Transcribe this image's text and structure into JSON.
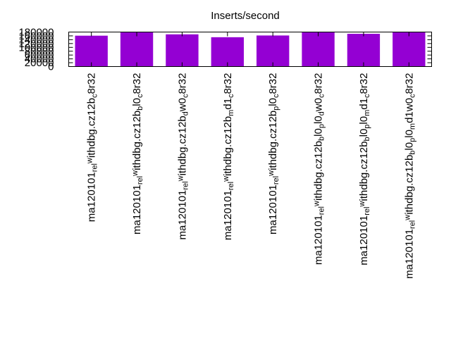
{
  "chart_data": {
    "type": "bar",
    "title": "Inserts/second",
    "xlabel": "",
    "ylabel": "",
    "ylim": [
      0,
      180000
    ],
    "yticks": [
      0,
      20000,
      40000,
      60000,
      80000,
      100000,
      120000,
      140000,
      160000,
      180000
    ],
    "ytick_labels": [
      "0",
      "20000",
      "40000",
      "60000",
      "80000",
      "100000",
      "120000",
      "140000",
      "160000",
      "180000"
    ],
    "grid": false,
    "bar_color": "#9400d3",
    "categories": [
      "ma120101_rel_withdbg.cz12b_c8r32",
      "ma120101_rel_withdbg.cz12b_bl0_c8r32",
      "ma120101_rel_withdbg.cz12b_dw0_c8r32",
      "ma120101_rel_withdbg.cz12b_md1_c8r32",
      "ma120101_rel_withdbg.cz12b_pl0_c8r32",
      "ma120101_rel_withdbg.cz12b_bl0_pl0_dw0_c8r32",
      "ma120101_rel_withdbg.cz12b_bl0_pl0_md1_c8r32",
      "ma120101_rel_withdbg.cz12b_bl0_pl0_md1_dw0_c8r32"
    ],
    "label_parts": [
      [
        [
          "ma120101",
          0
        ],
        [
          "rel",
          -1
        ],
        [
          "w",
          1
        ],
        [
          "ithdbg.cz12b",
          0
        ],
        [
          "c",
          -1
        ],
        [
          "8r32",
          0
        ]
      ],
      [
        [
          "ma120101",
          0
        ],
        [
          "rel",
          -1
        ],
        [
          "w",
          1
        ],
        [
          "ithdbg.cz12b",
          0
        ],
        [
          "b",
          -1
        ],
        [
          "l0",
          0
        ],
        [
          "c",
          -1
        ],
        [
          "8r32",
          0
        ]
      ],
      [
        [
          "ma120101",
          0
        ],
        [
          "rel",
          -1
        ],
        [
          "w",
          1
        ],
        [
          "ithdbg.cz12b",
          0
        ],
        [
          "d",
          -1
        ],
        [
          "w0",
          0
        ],
        [
          "c",
          -1
        ],
        [
          "8r32",
          0
        ]
      ],
      [
        [
          "ma120101",
          0
        ],
        [
          "rel",
          -1
        ],
        [
          "w",
          1
        ],
        [
          "ithdbg.cz12b",
          0
        ],
        [
          "m",
          -1
        ],
        [
          "d1",
          0
        ],
        [
          "c",
          -1
        ],
        [
          "8r32",
          0
        ]
      ],
      [
        [
          "ma120101",
          0
        ],
        [
          "rel",
          -1
        ],
        [
          "w",
          1
        ],
        [
          "ithdbg.cz12b",
          0
        ],
        [
          "p",
          -1
        ],
        [
          "l0",
          0
        ],
        [
          "c",
          -1
        ],
        [
          "8r32",
          0
        ]
      ],
      [
        [
          "ma120101",
          0
        ],
        [
          "rel",
          -1
        ],
        [
          "w",
          1
        ],
        [
          "ithdbg.cz12b",
          0
        ],
        [
          "b",
          -1
        ],
        [
          "l0",
          0
        ],
        [
          "p",
          -1
        ],
        [
          "l0",
          0
        ],
        [
          "d",
          -1
        ],
        [
          "w0",
          0
        ],
        [
          "c",
          -1
        ],
        [
          "8r32",
          0
        ]
      ],
      [
        [
          "ma120101",
          0
        ],
        [
          "rel",
          -1
        ],
        [
          "w",
          1
        ],
        [
          "ithdbg.cz12b",
          0
        ],
        [
          "b",
          -1
        ],
        [
          "l0",
          0
        ],
        [
          "p",
          -1
        ],
        [
          "l0",
          0
        ],
        [
          "m",
          -1
        ],
        [
          "d1",
          0
        ],
        [
          "c",
          -1
        ],
        [
          "8r32",
          0
        ]
      ],
      [
        [
          "ma120101",
          0
        ],
        [
          "rel",
          -1
        ],
        [
          "w",
          1
        ],
        [
          "ithdbg.cz12b",
          0
        ],
        [
          "b",
          -1
        ],
        [
          "l0",
          0
        ],
        [
          "p",
          -1
        ],
        [
          "l0",
          0
        ],
        [
          "m",
          -1
        ],
        [
          "d1",
          0
        ],
        [
          "w0",
          0
        ],
        [
          "c",
          -1
        ],
        [
          "8r32",
          0
        ]
      ]
    ],
    "values": [
      161000,
      180000,
      168000,
      153000,
      162000,
      180000,
      171000,
      180000
    ]
  }
}
